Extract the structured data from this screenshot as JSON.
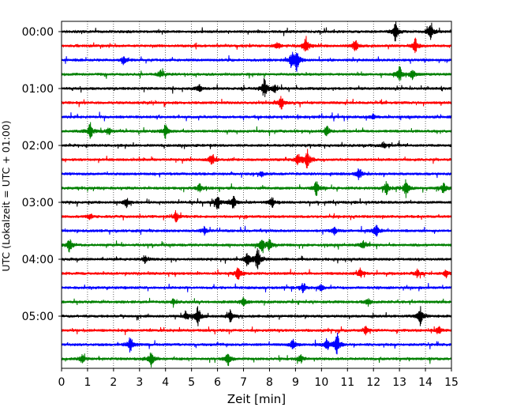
{
  "chart_data": {
    "type": "line",
    "title": "",
    "xlabel": "Zeit  [min]",
    "ylabel": "UTC (Lokalzeit = UTC + 01:00)",
    "xlim": [
      0,
      15
    ],
    "x_ticks": [
      "0",
      "1",
      "2",
      "3",
      "4",
      "5",
      "6",
      "7",
      "8",
      "9",
      "10",
      "11",
      "12",
      "13",
      "14",
      "15"
    ],
    "y_ticks": [
      "00:00",
      "01:00",
      "02:00",
      "03:00",
      "04:00",
      "05:00"
    ],
    "grid_x": true,
    "grid_y": false,
    "trace_interval_min": 15,
    "colors": [
      "#000000",
      "#ff0000",
      "#0000ff",
      "#008000"
    ],
    "series": [
      {
        "start": "00:00",
        "color": "#000000",
        "events": [
          [
            12.85,
            1.0
          ],
          [
            14.2,
            0.7
          ]
        ]
      },
      {
        "start": "00:15",
        "color": "#ff0000",
        "events": [
          [
            9.4,
            0.9
          ],
          [
            11.3,
            0.7
          ],
          [
            13.6,
            0.8
          ],
          [
            8.3,
            0.35
          ]
        ]
      },
      {
        "start": "00:30",
        "color": "#0000ff",
        "events": [
          [
            8.85,
            0.7
          ],
          [
            9.05,
            1.0
          ],
          [
            2.4,
            0.3
          ]
        ]
      },
      {
        "start": "00:45",
        "color": "#008000",
        "events": [
          [
            13.0,
            0.8
          ],
          [
            13.5,
            0.5
          ],
          [
            3.8,
            0.35
          ]
        ]
      },
      {
        "start": "01:00",
        "color": "#000000",
        "events": [
          [
            7.8,
            0.9
          ],
          [
            5.3,
            0.4
          ],
          [
            8.2,
            0.4
          ]
        ]
      },
      {
        "start": "01:15",
        "color": "#ff0000",
        "events": [
          [
            8.45,
            0.7
          ]
        ]
      },
      {
        "start": "01:30",
        "color": "#0000ff",
        "events": [
          [
            12.0,
            0.25
          ]
        ]
      },
      {
        "start": "01:45",
        "color": "#008000",
        "events": [
          [
            1.1,
            0.9
          ],
          [
            4.0,
            0.7
          ],
          [
            10.2,
            0.5
          ],
          [
            1.8,
            0.35
          ]
        ]
      },
      {
        "start": "02:00",
        "color": "#000000",
        "events": [
          [
            12.4,
            0.3
          ]
        ]
      },
      {
        "start": "02:15",
        "color": "#ff0000",
        "events": [
          [
            9.45,
            1.0
          ],
          [
            5.8,
            0.6
          ],
          [
            9.1,
            0.5
          ]
        ]
      },
      {
        "start": "02:30",
        "color": "#0000ff",
        "events": [
          [
            11.45,
            0.6
          ],
          [
            7.7,
            0.25
          ]
        ]
      },
      {
        "start": "02:45",
        "color": "#008000",
        "events": [
          [
            9.8,
            0.8
          ],
          [
            12.5,
            0.6
          ],
          [
            13.25,
            0.9
          ],
          [
            14.7,
            0.6
          ],
          [
            5.3,
            0.4
          ]
        ]
      },
      {
        "start": "03:00",
        "color": "#000000",
        "events": [
          [
            6.0,
            0.8
          ],
          [
            6.6,
            0.7
          ],
          [
            2.5,
            0.45
          ],
          [
            8.1,
            0.5
          ]
        ]
      },
      {
        "start": "03:15",
        "color": "#ff0000",
        "events": [
          [
            4.4,
            0.5
          ],
          [
            1.1,
            0.3
          ]
        ]
      },
      {
        "start": "03:30",
        "color": "#0000ff",
        "events": [
          [
            12.1,
            0.6
          ],
          [
            5.5,
            0.4
          ],
          [
            10.5,
            0.4
          ]
        ]
      },
      {
        "start": "03:45",
        "color": "#008000",
        "events": [
          [
            0.3,
            0.7
          ],
          [
            7.7,
            0.7
          ],
          [
            8.0,
            0.5
          ],
          [
            11.6,
            0.4
          ]
        ]
      },
      {
        "start": "04:00",
        "color": "#000000",
        "events": [
          [
            7.55,
            1.0
          ],
          [
            7.15,
            0.6
          ],
          [
            3.2,
            0.35
          ]
        ]
      },
      {
        "start": "04:15",
        "color": "#ff0000",
        "events": [
          [
            6.8,
            0.7
          ],
          [
            11.5,
            0.45
          ],
          [
            13.7,
            0.4
          ],
          [
            14.8,
            0.4
          ]
        ]
      },
      {
        "start": "04:30",
        "color": "#0000ff",
        "events": [
          [
            9.3,
            0.5
          ],
          [
            10.0,
            0.35
          ]
        ]
      },
      {
        "start": "04:45",
        "color": "#008000",
        "events": [
          [
            7.0,
            0.4
          ],
          [
            11.8,
            0.4
          ],
          [
            4.3,
            0.3
          ]
        ]
      },
      {
        "start": "05:00",
        "color": "#000000",
        "events": [
          [
            5.25,
            0.9
          ],
          [
            13.8,
            0.9
          ],
          [
            6.5,
            0.6
          ],
          [
            4.8,
            0.4
          ]
        ]
      },
      {
        "start": "05:15",
        "color": "#ff0000",
        "events": [
          [
            14.5,
            0.4
          ],
          [
            11.7,
            0.35
          ]
        ]
      },
      {
        "start": "05:30",
        "color": "#0000ff",
        "events": [
          [
            2.65,
            0.8
          ],
          [
            10.6,
            1.0
          ],
          [
            10.2,
            0.6
          ],
          [
            8.9,
            0.45
          ]
        ]
      },
      {
        "start": "05:45",
        "color": "#008000",
        "events": [
          [
            3.45,
            0.8
          ],
          [
            6.4,
            0.7
          ],
          [
            0.8,
            0.4
          ],
          [
            9.2,
            0.4
          ]
        ]
      }
    ]
  }
}
